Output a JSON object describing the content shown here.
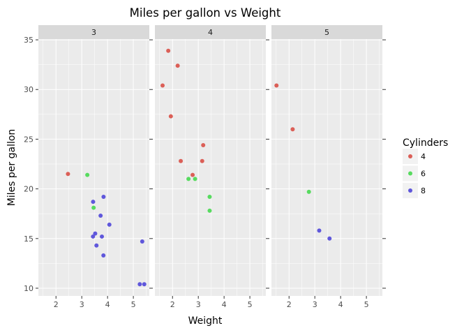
{
  "chart_data": {
    "type": "scatter",
    "title": "Miles per gallon vs Weight",
    "xlabel": "Weight",
    "ylabel": "Miles per gallon",
    "xlim": [
      1.317,
      5.62
    ],
    "ylim": [
      9.225,
      35.075
    ],
    "xticks": [
      2,
      3,
      4,
      5
    ],
    "yticks": [
      10,
      15,
      20,
      25,
      30,
      35
    ],
    "grid": true,
    "legend": {
      "title": "Cylinders",
      "placement": "right",
      "entries": [
        {
          "label": "4",
          "color": "#db5f57"
        },
        {
          "label": "6",
          "color": "#57db5f"
        },
        {
          "label": "8",
          "color": "#5f57db"
        }
      ]
    },
    "facets": [
      {
        "label": "3",
        "points": [
          {
            "x": 3.215,
            "y": 21.4,
            "cyl": "6"
          },
          {
            "x": 3.44,
            "y": 18.7,
            "cyl": "8"
          },
          {
            "x": 3.46,
            "y": 18.1,
            "cyl": "6"
          },
          {
            "x": 3.57,
            "y": 14.3,
            "cyl": "8"
          },
          {
            "x": 4.07,
            "y": 16.4,
            "cyl": "8"
          },
          {
            "x": 3.73,
            "y": 17.3,
            "cyl": "8"
          },
          {
            "x": 3.78,
            "y": 15.2,
            "cyl": "8"
          },
          {
            "x": 5.25,
            "y": 10.4,
            "cyl": "8"
          },
          {
            "x": 5.424,
            "y": 10.4,
            "cyl": "8"
          },
          {
            "x": 5.345,
            "y": 14.7,
            "cyl": "8"
          },
          {
            "x": 2.465,
            "y": 21.5,
            "cyl": "4"
          },
          {
            "x": 3.52,
            "y": 15.5,
            "cyl": "8"
          },
          {
            "x": 3.435,
            "y": 15.2,
            "cyl": "8"
          },
          {
            "x": 3.84,
            "y": 13.3,
            "cyl": "8"
          },
          {
            "x": 3.845,
            "y": 19.2,
            "cyl": "8"
          }
        ]
      },
      {
        "label": "4",
        "points": [
          {
            "x": 2.62,
            "y": 21.0,
            "cyl": "6"
          },
          {
            "x": 2.875,
            "y": 21.0,
            "cyl": "6"
          },
          {
            "x": 2.32,
            "y": 22.8,
            "cyl": "4"
          },
          {
            "x": 3.19,
            "y": 24.4,
            "cyl": "4"
          },
          {
            "x": 3.15,
            "y": 22.8,
            "cyl": "4"
          },
          {
            "x": 3.44,
            "y": 19.2,
            "cyl": "6"
          },
          {
            "x": 3.44,
            "y": 17.8,
            "cyl": "6"
          },
          {
            "x": 2.2,
            "y": 32.4,
            "cyl": "4"
          },
          {
            "x": 1.615,
            "y": 30.4,
            "cyl": "4"
          },
          {
            "x": 1.835,
            "y": 33.9,
            "cyl": "4"
          },
          {
            "x": 1.935,
            "y": 27.3,
            "cyl": "4"
          },
          {
            "x": 2.78,
            "y": 21.4,
            "cyl": "4"
          }
        ]
      },
      {
        "label": "5",
        "points": [
          {
            "x": 2.14,
            "y": 26.0,
            "cyl": "4"
          },
          {
            "x": 1.513,
            "y": 30.4,
            "cyl": "4"
          },
          {
            "x": 3.17,
            "y": 15.8,
            "cyl": "8"
          },
          {
            "x": 2.77,
            "y": 19.7,
            "cyl": "6"
          },
          {
            "x": 3.57,
            "y": 15.0,
            "cyl": "8"
          }
        ]
      }
    ]
  }
}
